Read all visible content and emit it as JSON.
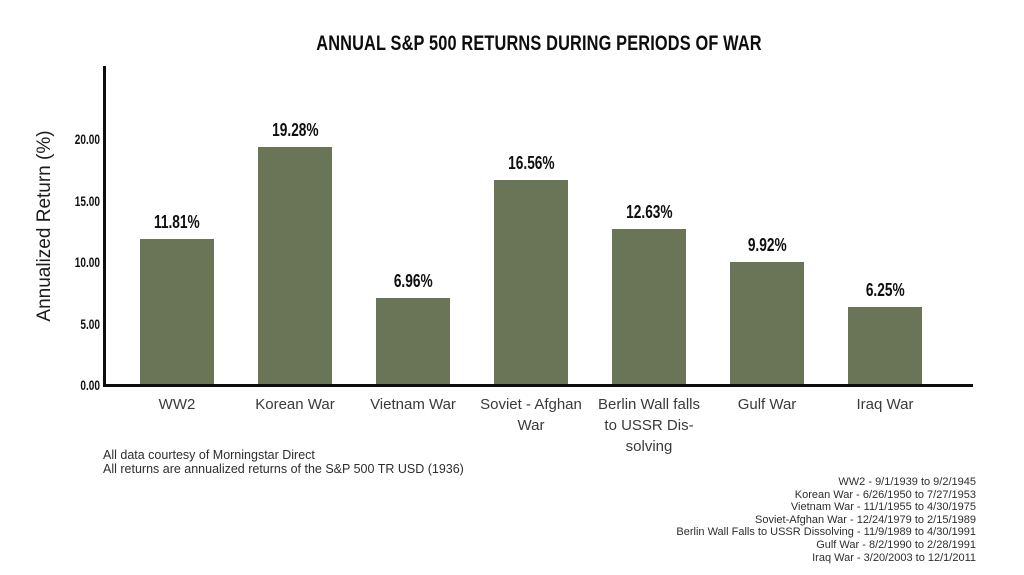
{
  "title": "ANNUAL S&P 500 RETURNS DURING PERIODS OF WAR",
  "chart_data": {
    "type": "bar",
    "title": "ANNUAL S&P 500 RETURNS DURING PERIODS OF WAR",
    "xlabel": "",
    "ylabel": "Annualized Return (%)",
    "ylim": [
      0,
      26
    ],
    "grid": false,
    "legend": "none",
    "bar_color": "#6a7557",
    "yticks": [
      {
        "value": 0,
        "label": "0.00"
      },
      {
        "value": 5,
        "label": "5.00"
      },
      {
        "value": 10,
        "label": "10.00"
      },
      {
        "value": 15,
        "label": "15.00"
      },
      {
        "value": 20,
        "label": "20.00"
      }
    ],
    "categories": [
      "WW2",
      "Korean War",
      "Vietnam War",
      "Soviet - Afghan\nWar",
      "Berlin Wall falls\nto USSR Dis-\nsolving",
      "Gulf War",
      "Iraq War"
    ],
    "values": [
      11.81,
      19.28,
      6.96,
      16.56,
      12.63,
      9.92,
      6.25
    ],
    "value_labels": [
      "11.81%",
      "19.28%",
      "6.96%",
      "16.56%",
      "12.63%",
      "9.92%",
      "6.25%"
    ]
  },
  "footnotes": [
    "All data courtesy of Morningstar Direct",
    "All returns are annualized returns of the S&P 500 TR USD (1936)"
  ],
  "date_annotations": [
    "WW2 - 9/1/1939 to 9/2/1945",
    "Korean War - 6/26/1950 to 7/27/1953",
    "Vietnam War - 11/1/1955 to 4/30/1975",
    "Soviet-Afghan War - 12/24/1979 to 2/15/1989",
    "Berlin Wall Falls to USSR Dissolving - 11/9/1989 to 4/30/1991",
    "Gulf War - 8/2/1990 to 2/28/1991",
    "Iraq War - 3/20/2003 to 12/1/2011"
  ]
}
